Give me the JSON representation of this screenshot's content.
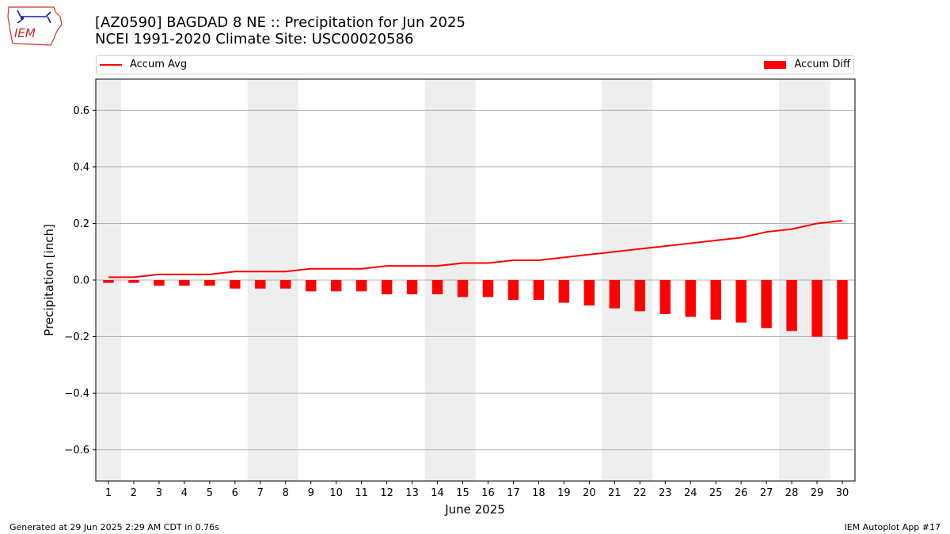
{
  "header": {
    "title_line1": "[AZ0590] BAGDAD 8 NE :: Precipitation for Jun 2025",
    "title_line2": "NCEI 1991-2020 Climate Site: USC00020586",
    "logo_text": "IEM"
  },
  "legend": {
    "line_label": "Accum Avg",
    "bar_label": "Accum Diff"
  },
  "footer": {
    "generated": "Generated at 29 Jun 2025 2:29 AM CDT in 0.76s",
    "app": "IEM Autoplot App #17"
  },
  "colors": {
    "series": "#ff0000",
    "weekend_band": "#eeeeee",
    "grid": "#b0b0b0"
  },
  "chart_data": {
    "type": "bar",
    "xlabel": "June 2025",
    "ylabel": "Precipitation [inch]",
    "ylim": [
      -0.71,
      0.71
    ],
    "yticks": [
      -0.6,
      -0.4,
      -0.2,
      0.0,
      0.2,
      0.4,
      0.6
    ],
    "ytick_labels": [
      "−0.6",
      "−0.4",
      "−0.2",
      "0.0",
      "0.2",
      "0.4",
      "0.6"
    ],
    "xlim": [
      0.5,
      30.5
    ],
    "categories": [
      "1",
      "2",
      "3",
      "4",
      "5",
      "6",
      "7",
      "8",
      "9",
      "10",
      "11",
      "12",
      "13",
      "14",
      "15",
      "16",
      "17",
      "18",
      "19",
      "20",
      "21",
      "22",
      "23",
      "24",
      "25",
      "26",
      "27",
      "28",
      "29",
      "30"
    ],
    "grid": "horizontal",
    "legend_placement": "top",
    "shaded_weekend_days": [
      [
        1,
        1
      ],
      [
        7,
        8
      ],
      [
        14,
        15
      ],
      [
        21,
        22
      ],
      [
        28,
        29
      ]
    ],
    "series": [
      {
        "name": "Accum Avg",
        "kind": "line",
        "values": [
          0.01,
          0.01,
          0.02,
          0.02,
          0.02,
          0.03,
          0.03,
          0.03,
          0.04,
          0.04,
          0.04,
          0.05,
          0.05,
          0.05,
          0.06,
          0.06,
          0.07,
          0.07,
          0.08,
          0.09,
          0.1,
          0.11,
          0.12,
          0.13,
          0.14,
          0.15,
          0.17,
          0.18,
          0.2,
          0.21
        ]
      },
      {
        "name": "Accum Diff",
        "kind": "bar",
        "values": [
          -0.01,
          -0.01,
          -0.02,
          -0.02,
          -0.02,
          -0.03,
          -0.03,
          -0.03,
          -0.04,
          -0.04,
          -0.04,
          -0.05,
          -0.05,
          -0.05,
          -0.06,
          -0.06,
          -0.07,
          -0.07,
          -0.08,
          -0.09,
          -0.1,
          -0.11,
          -0.12,
          -0.13,
          -0.14,
          -0.15,
          -0.17,
          -0.18,
          -0.2,
          -0.21
        ]
      }
    ]
  }
}
